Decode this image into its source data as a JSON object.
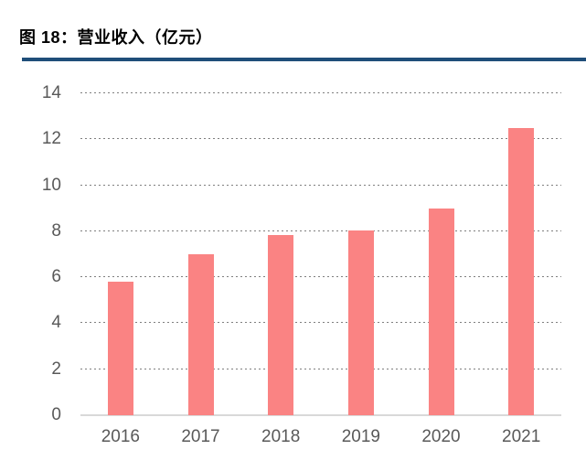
{
  "header": {
    "title": "图 18：营业收入（亿元）"
  },
  "colors": {
    "title_text": "#000000",
    "rule": "#1F4E79",
    "bar": "#FA8383",
    "gridline": "#7F7F7F",
    "baseline": "#D9D9D9",
    "axis_label": "#595959",
    "background": "#FFFFFF"
  },
  "chart_data": {
    "type": "bar",
    "figure_label": "图 18",
    "title": "营业收入（亿元）",
    "xlabel": "",
    "ylabel": "",
    "categories": [
      "2016",
      "2017",
      "2018",
      "2019",
      "2020",
      "2021"
    ],
    "values": [
      5.8,
      7.0,
      7.85,
      8.05,
      9.0,
      12.5
    ],
    "ylim": [
      0,
      14
    ],
    "yticks": [
      0,
      2,
      4,
      6,
      8,
      10,
      12,
      14
    ],
    "grid": "horizontal-dotted",
    "legend": "none"
  }
}
